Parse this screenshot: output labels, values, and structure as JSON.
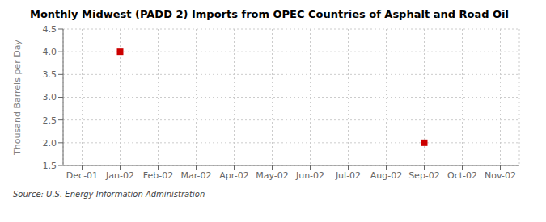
{
  "chart_data": {
    "type": "scatter",
    "title": "Monthly Midwest (PADD 2) Imports from OPEC Countries of Asphalt and Road Oil",
    "y_label": "Thousand Barrels per Day",
    "annotations": [
      "Source: U.S. Energy Information Administration"
    ],
    "categories": [
      "Dec-01",
      "Jan-02",
      "Feb-02",
      "Mar-02",
      "Apr-02",
      "May-02",
      "Jun-02",
      "Jul-02",
      "Aug-02",
      "Sep-02",
      "Oct-02",
      "Nov-02"
    ],
    "values": [
      null,
      4.0,
      null,
      null,
      null,
      null,
      null,
      null,
      null,
      2.0,
      null,
      null
    ],
    "color": "#CC0000",
    "marker": "square",
    "ylim": [
      1.5,
      4.5
    ],
    "yticks": [
      1.5,
      {
        "value": 2.0,
        "label": "2.0"
      },
      2.5,
      {
        "value": 3.0,
        "label": "3.0"
      },
      3.5,
      {
        "value": 4.0,
        "label": "4.0"
      },
      4.5
    ],
    "grid": true
  }
}
